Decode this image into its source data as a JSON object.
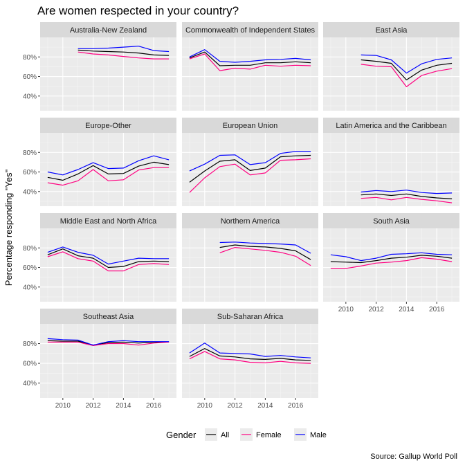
{
  "chart_data": {
    "type": "line",
    "title": "Are women respected in your country?",
    "ylabel": "Percentage responding \"Yes\"",
    "xlabel": "",
    "caption": "Source: Gallup World Poll",
    "ylim": [
      25,
      100
    ],
    "xlim": [
      2008.5,
      2017.5
    ],
    "y_ticks": [
      40,
      60,
      80
    ],
    "y_tick_labels": [
      "40%",
      "60%",
      "80%"
    ],
    "x_ticks": [
      2010,
      2012,
      2014,
      2016
    ],
    "x_tick_labels": [
      "2010",
      "2012",
      "2014",
      "2016"
    ],
    "legend": {
      "title": "Gender",
      "position": "bottom",
      "entries": [
        {
          "name": "All",
          "color": "#000000"
        },
        {
          "name": "Female",
          "color": "#ff0080"
        },
        {
          "name": "Male",
          "color": "#0000ff"
        }
      ]
    },
    "grid": true,
    "panel_background": "#ebebeb",
    "strip_background": "#d9d9d9",
    "panels": [
      {
        "name": "Australia-New Zealand",
        "x": [
          2011,
          2012,
          2013,
          2014,
          2015,
          2016,
          2017
        ],
        "series": [
          {
            "name": "All",
            "values": [
              87,
              86,
              85.5,
              85,
              84,
              82,
              81.5
            ]
          },
          {
            "name": "Female",
            "values": [
              85,
              83,
              82,
              80.5,
              79,
              78,
              78
            ]
          },
          {
            "name": "Male",
            "values": [
              88.5,
              88.5,
              89,
              90,
              91,
              86.5,
              85.5
            ]
          }
        ]
      },
      {
        "name": "Commonwealth of Independent States",
        "x": [
          2009,
          2010,
          2011,
          2012,
          2013,
          2014,
          2015,
          2016,
          2017
        ],
        "series": [
          {
            "name": "All",
            "values": [
              79,
              85,
              71,
              71.5,
              71.5,
              74,
              74,
              75,
              74
            ]
          },
          {
            "name": "Female",
            "values": [
              78,
              83,
              66,
              68.5,
              67.5,
              71.5,
              70.5,
              71.5,
              71
            ]
          },
          {
            "name": "Male",
            "values": [
              80,
              87.5,
              75.5,
              74.5,
              75.5,
              77,
              77.5,
              78.5,
              77
            ]
          }
        ]
      },
      {
        "name": "East Asia",
        "x": [
          2011,
          2012,
          2013,
          2014,
          2015,
          2016,
          2017
        ],
        "series": [
          {
            "name": "All",
            "values": [
              77,
              75.5,
              73.5,
              56.5,
              66.5,
              71.5,
              73.5
            ]
          },
          {
            "name": "Female",
            "values": [
              72.5,
              70.5,
              70,
              49.5,
              61,
              65.5,
              68
            ]
          },
          {
            "name": "Male",
            "values": [
              82,
              81.5,
              77,
              63.5,
              73,
              77.5,
              79
            ]
          }
        ]
      },
      {
        "name": "Europe-Other",
        "x": [
          2009,
          2010,
          2011,
          2012,
          2013,
          2014,
          2015,
          2016,
          2017
        ],
        "series": [
          {
            "name": "All",
            "values": [
              54.5,
              51.5,
              58,
              66.5,
              58,
              58.5,
              66,
              70,
              67.5
            ]
          },
          {
            "name": "Female",
            "values": [
              49,
              46.5,
              51,
              62.5,
              51,
              52,
              62,
              64.5,
              64.5
            ]
          },
          {
            "name": "Male",
            "values": [
              60,
              57,
              62.5,
              69.5,
              63.5,
              64,
              71.5,
              76.5,
              72.5
            ]
          }
        ]
      },
      {
        "name": "European Union",
        "x": [
          2009,
          2010,
          2011,
          2012,
          2013,
          2014,
          2015,
          2016,
          2017
        ],
        "series": [
          {
            "name": "All",
            "values": [
              49.5,
              61,
              71,
              72.5,
              61.5,
              64,
              75.5,
              76.5,
              77
            ]
          },
          {
            "name": "Female",
            "values": [
              39,
              54,
              65.5,
              68,
              57,
              59,
              72,
              72.5,
              73.5
            ]
          },
          {
            "name": "Male",
            "values": [
              61,
              68,
              77,
              77.5,
              67.5,
              69.5,
              79,
              81,
              81
            ]
          }
        ]
      },
      {
        "name": "Latin America and the Caribbean",
        "x": [
          2011,
          2012,
          2013,
          2014,
          2015,
          2016,
          2017
        ],
        "series": [
          {
            "name": "All",
            "values": [
              36.5,
              37.5,
              36,
              37.5,
              35,
              33.5,
              32.5
            ]
          },
          {
            "name": "Female",
            "values": [
              33,
              34,
              31.5,
              34,
              32,
              30.5,
              28.5
            ]
          },
          {
            "name": "Male",
            "values": [
              39.5,
              41,
              40,
              41.5,
              39,
              38,
              38.5
            ]
          }
        ]
      },
      {
        "name": "Middle East and North Africa",
        "x": [
          2009,
          2010,
          2011,
          2012,
          2013,
          2014,
          2015,
          2016,
          2017
        ],
        "series": [
          {
            "name": "All",
            "values": [
              73,
              79,
              72,
              69.5,
              60,
              61,
              66,
              66.5,
              66
            ]
          },
          {
            "name": "Female",
            "values": [
              71,
              76,
              69,
              66.5,
              56.5,
              56.5,
              63,
              64,
              63
            ]
          },
          {
            "name": "Male",
            "values": [
              75.5,
              81,
              75.5,
              72.5,
              63.5,
              66.5,
              69.5,
              69,
              69
            ]
          }
        ]
      },
      {
        "name": "Northern America",
        "x": [
          2011,
          2012,
          2013,
          2014,
          2015,
          2016,
          2017
        ],
        "series": [
          {
            "name": "All",
            "values": [
              80.5,
              83,
              81.5,
              81,
              79.5,
              77,
              68
            ]
          },
          {
            "name": "Female",
            "values": [
              75,
              80.5,
              79,
              77.5,
              75.5,
              71.5,
              62
            ]
          },
          {
            "name": "Male",
            "values": [
              85.5,
              86,
              85,
              84.5,
              84,
              83,
              74.5
            ]
          }
        ]
      },
      {
        "name": "South Asia",
        "x": [
          2009,
          2010,
          2011,
          2012,
          2013,
          2014,
          2015,
          2016,
          2017
        ],
        "series": [
          {
            "name": "All",
            "values": [
              66,
              65.5,
              65,
              67,
              69.5,
              70.5,
              72.5,
              71.5,
              69.5
            ]
          },
          {
            "name": "Female",
            "values": [
              59,
              59,
              61.5,
              64.5,
              65.5,
              67,
              70,
              68.5,
              66
            ]
          },
          {
            "name": "Male",
            "values": [
              73,
              71,
              67,
              69.5,
              73.5,
              74,
              75,
              73.5,
              73
            ]
          }
        ]
      },
      {
        "name": "Southeast Asia",
        "x": [
          2009,
          2010,
          2011,
          2012,
          2013,
          2014,
          2015,
          2016,
          2017
        ],
        "series": [
          {
            "name": "All",
            "values": [
              83,
              82.5,
              82.5,
              78.5,
              81,
              81.5,
              80.5,
              81.5,
              81.5
            ]
          },
          {
            "name": "Female",
            "values": [
              81.5,
              81.5,
              81.5,
              78,
              80,
              80,
              78.5,
              80.5,
              81.5
            ]
          },
          {
            "name": "Male",
            "values": [
              85,
              84,
              83.5,
              78.5,
              82,
              83,
              82,
              82,
              82
            ]
          }
        ]
      },
      {
        "name": "Sub-Saharan Africa",
        "x": [
          2009,
          2010,
          2011,
          2012,
          2013,
          2014,
          2015,
          2016,
          2017
        ],
        "series": [
          {
            "name": "All",
            "values": [
              67,
              75,
              67.5,
              66.5,
              64.5,
              64,
              65,
              63.5,
              63
            ]
          },
          {
            "name": "Female",
            "values": [
              64.5,
              72,
              64.5,
              63.5,
              61,
              60.5,
              62,
              60.5,
              60
            ]
          },
          {
            "name": "Male",
            "values": [
              70.5,
              80.5,
              70.5,
              70,
              69.5,
              67,
              68,
              66.5,
              65.5
            ]
          }
        ]
      }
    ]
  }
}
